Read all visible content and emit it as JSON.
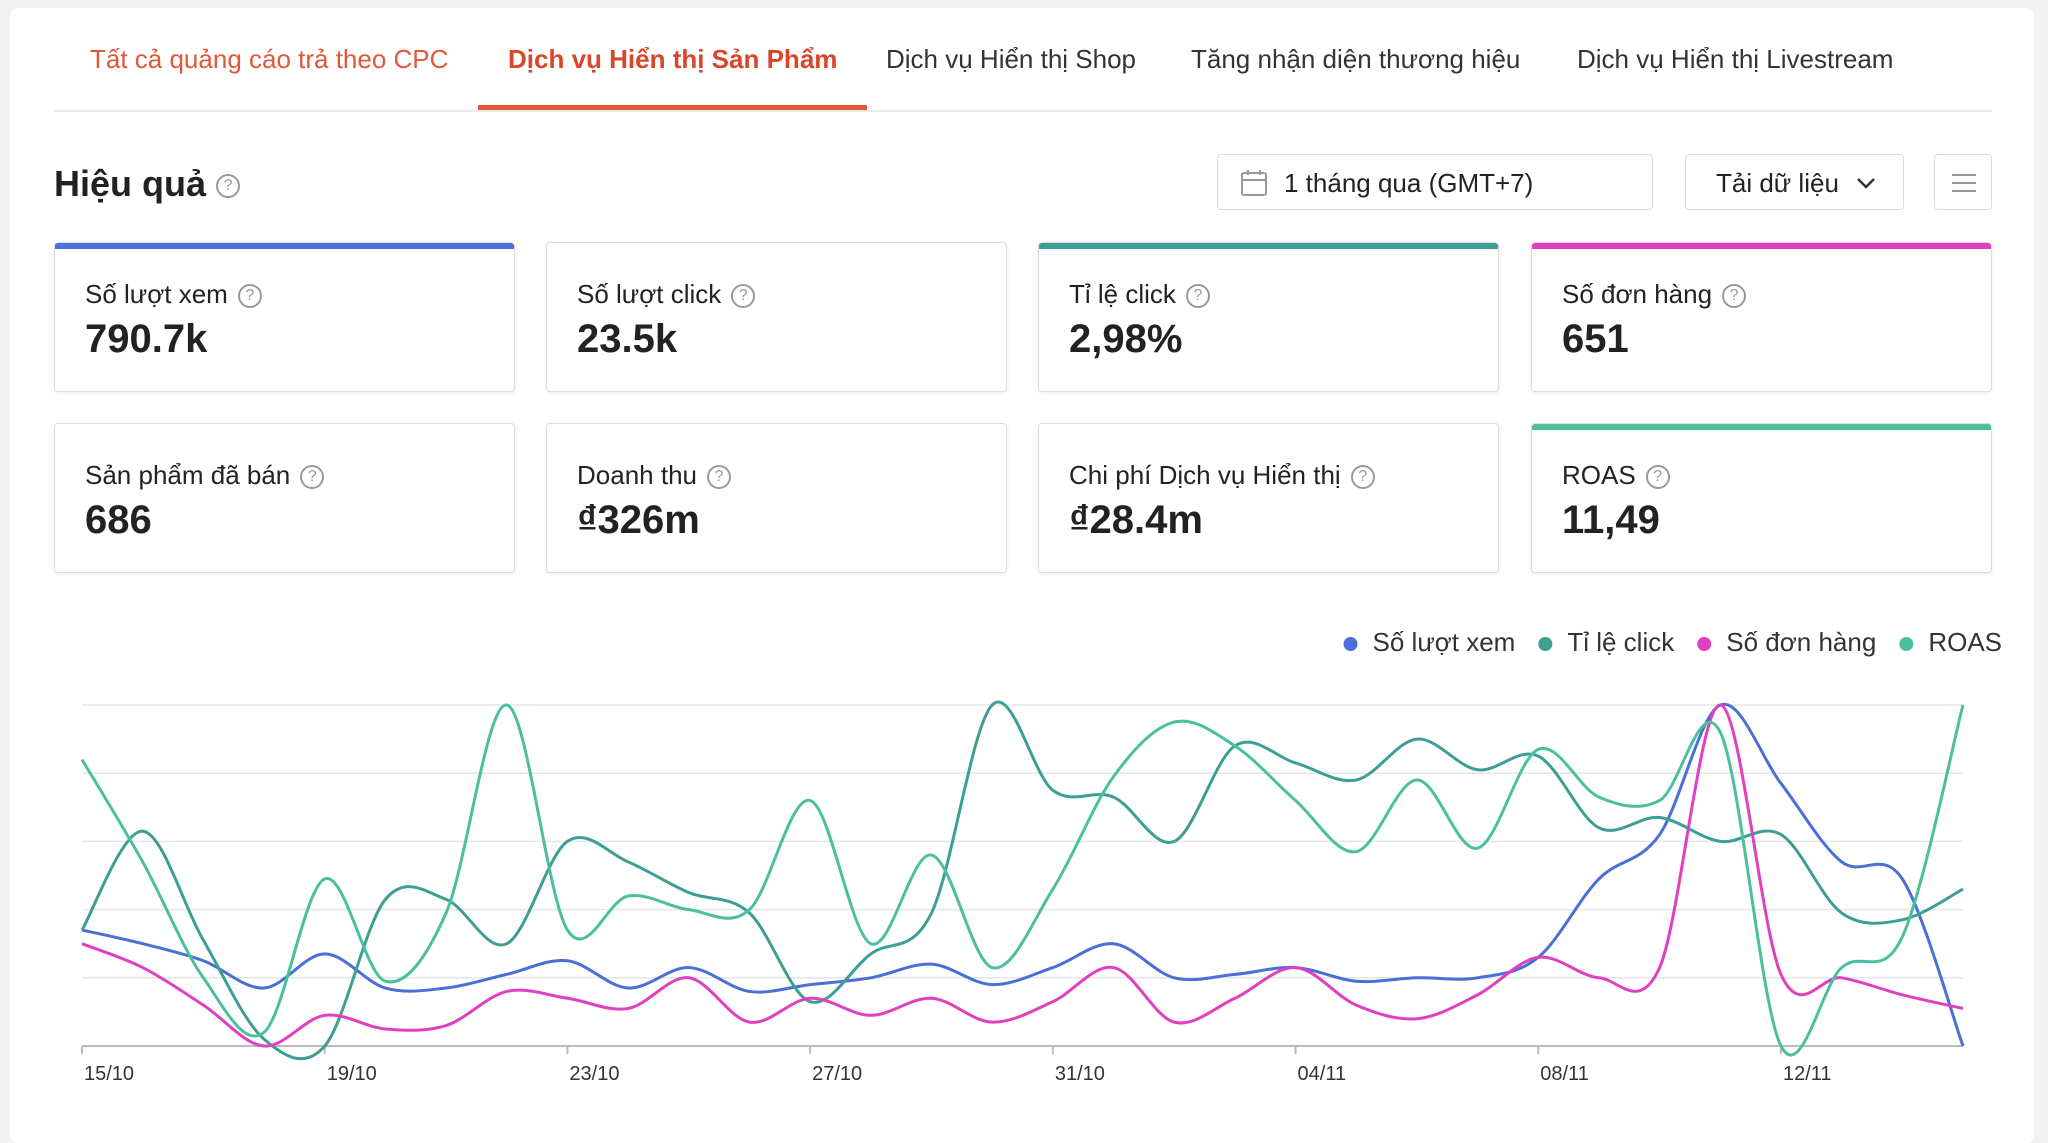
{
  "tabs": {
    "items": [
      "Tất cả quảng cáo trả theo CPC",
      "Dịch vụ Hiển thị Sản Phẩm",
      "Dịch vụ Hiển thị Shop",
      "Tăng nhận diện thương hiệu",
      "Dịch vụ Hiển thị Livestream"
    ],
    "active": 1
  },
  "section": {
    "title": "Hiệu quả",
    "date_range": "1 tháng qua (GMT+7)",
    "download": "Tải dữ liệu"
  },
  "metrics": [
    {
      "label": "Số lượt xem",
      "value": "790.7k",
      "accent": "#4a72d8"
    },
    {
      "label": "Số lượt click",
      "value": "23.5k"
    },
    {
      "label": "Tỉ lệ click",
      "value": "2,98%",
      "accent": "#3d9e94"
    },
    {
      "label": "Số đơn hàng",
      "value": "651",
      "accent": "#e040c0"
    },
    {
      "label": "Sản phẩm đã bán",
      "value": "686"
    },
    {
      "label": "Doanh thu",
      "value": "₫326m"
    },
    {
      "label": "Chi phí Dịch vụ Hiển thị",
      "value": "₫28.4m"
    },
    {
      "label": "ROAS",
      "value": "11,49",
      "accent": "#4cbf9f"
    }
  ],
  "chart_data": {
    "type": "line",
    "categories": [
      "15/10",
      null,
      null,
      null,
      "19/10",
      null,
      null,
      null,
      "23/10",
      null,
      null,
      null,
      "27/10",
      null,
      null,
      null,
      "31/10",
      null,
      null,
      null,
      "04/11",
      null,
      null,
      null,
      "08/11",
      null,
      null,
      null,
      "12/11",
      null,
      null,
      null
    ],
    "series": [
      {
        "name": "Số lượt xem",
        "color": "#4a6fd6",
        "values": [
          34,
          30,
          25,
          17,
          27,
          17,
          17,
          21,
          25,
          17,
          23,
          16,
          18,
          20,
          24,
          18,
          23,
          30,
          20,
          21,
          23,
          19,
          20,
          20,
          26,
          49,
          62,
          100,
          77,
          54,
          49,
          0
        ]
      },
      {
        "name": "Tỉ lệ click",
        "color": "#3d9e94",
        "values": [
          34,
          63,
          31,
          2,
          0,
          43,
          43,
          30,
          60,
          54,
          45,
          39,
          13,
          27,
          39,
          100,
          75,
          73,
          60,
          88,
          83,
          78,
          90,
          81,
          85,
          64,
          67,
          60,
          62,
          39,
          37,
          46
        ]
      },
      {
        "name": "Số đơn hàng",
        "color": "#e040c0",
        "values": [
          30,
          23,
          12,
          0,
          9,
          5,
          6,
          16,
          14,
          11,
          20,
          7,
          14,
          9,
          14,
          7,
          13,
          23,
          7,
          14,
          23,
          12,
          8,
          15,
          26,
          20,
          23,
          100,
          21,
          20,
          15,
          11
        ]
      },
      {
        "name": "ROAS",
        "color": "#4cbf9f",
        "values": [
          84,
          54,
          20,
          4,
          49,
          19,
          39,
          100,
          34,
          44,
          40,
          40,
          72,
          30,
          56,
          23,
          46,
          79,
          95,
          88,
          72,
          57,
          78,
          58,
          87,
          73,
          72,
          92,
          0,
          23,
          32,
          100
        ]
      }
    ],
    "ylim": [
      0,
      100
    ],
    "yticks": [
      0,
      20,
      40,
      60,
      80,
      100
    ],
    "grid": true
  }
}
